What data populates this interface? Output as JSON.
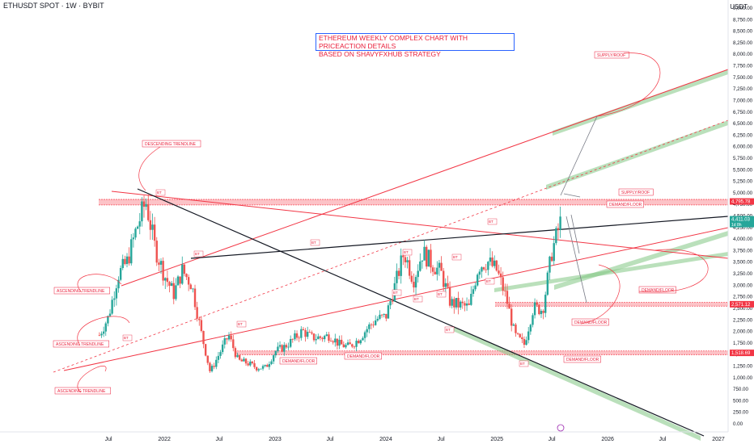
{
  "header": {
    "symbol": "ETHUSDT SPOT · 1W · BYBIT",
    "currency": "USDT"
  },
  "title_box": {
    "line1": "ETHEREUM WEEKLY COMPLEX CHART WITH PRICEACTION DETAILS",
    "line2": "BASED ON SHAVYFXHUB STRATEGY"
  },
  "colors": {
    "up": "#26a69a",
    "down": "#ef5350",
    "trend_red": "#f23645",
    "trend_black": "#131722",
    "channel_green": "#81c784",
    "zone_red": "#f7525f",
    "label_red": "#e91e3a"
  },
  "chart_data": {
    "type": "candlestick",
    "timeframe": "1W",
    "y_axis": {
      "ticks": [
        0,
        250,
        500,
        750,
        1000,
        1250,
        1500,
        1750,
        2000,
        2250,
        2500,
        2750,
        3000,
        3250,
        3500,
        3750,
        4000,
        4250,
        4500,
        4750,
        5000,
        5250,
        5500,
        5750,
        6000,
        6250,
        6500,
        6750,
        7000,
        7250,
        7500,
        7750,
        8000,
        8250,
        8500,
        8750,
        9000
      ],
      "tick_labels": [
        "0.00",
        "250.00",
        "500.00",
        "750.00",
        "1,000.00",
        "1,250.00",
        "1,500.00",
        "1,750.00",
        "2,000.00",
        "2,250.00",
        "2,500.00",
        "2,750.00",
        "3,000.00",
        "3,250.00",
        "3,500.00",
        "3,750.00",
        "4,000.00",
        "4,250.00",
        "4,500.00",
        "4,750.00",
        "5,000.00",
        "5,250.00",
        "5,500.00",
        "5,750.00",
        "6,000.00",
        "6,250.00",
        "6,500.00",
        "6,750.00",
        "7,000.00",
        "7,250.00",
        "7,500.00",
        "7,750.00",
        "8,000.00",
        "8,250.00",
        "8,500.00",
        "8,750.00",
        "9,000.00"
      ],
      "range": [
        0,
        9000
      ]
    },
    "x_axis": {
      "labels": [
        "Jul",
        "2022",
        "Jul",
        "2023",
        "Jul",
        "2024",
        "Jul",
        "2025",
        "Jul",
        "2026",
        "Jul",
        "2027"
      ],
      "range": [
        "2021-04",
        "2027-01"
      ]
    },
    "price_tags": [
      {
        "value": 4795.78,
        "label": "4,795.78",
        "color": "#f23645"
      },
      {
        "value": 4411.03,
        "label": "4,411.03",
        "sub": "1d 8h",
        "color": "#26a69a"
      },
      {
        "value": 2571.12,
        "label": "2,571.12",
        "color": "#f23645"
      },
      {
        "value": 1518.69,
        "label": "1,518.69",
        "color": "#f23645"
      }
    ],
    "price_path": [
      [
        "2021-06",
        1900
      ],
      [
        "2021-07",
        2300
      ],
      [
        "2021-08",
        3200
      ],
      [
        "2021-09",
        3500
      ],
      [
        "2021-10",
        4200
      ],
      [
        "2021-11",
        4800
      ],
      [
        "2021-12",
        3800
      ],
      [
        "2022-01",
        3200
      ],
      [
        "2022-02",
        2800
      ],
      [
        "2022-03",
        3300
      ],
      [
        "2022-04",
        3000
      ],
      [
        "2022-05",
        2000
      ],
      [
        "2022-06",
        1100
      ],
      [
        "2022-07",
        1500
      ],
      [
        "2022-08",
        1900
      ],
      [
        "2022-09",
        1350
      ],
      [
        "2022-10",
        1300
      ],
      [
        "2022-11",
        1200
      ],
      [
        "2022-12",
        1200
      ],
      [
        "2023-01",
        1550
      ],
      [
        "2023-02",
        1650
      ],
      [
        "2023-03",
        1800
      ],
      [
        "2023-04",
        2000
      ],
      [
        "2023-05",
        1850
      ],
      [
        "2023-06",
        1850
      ],
      [
        "2023-07",
        1900
      ],
      [
        "2023-08",
        1700
      ],
      [
        "2023-09",
        1650
      ],
      [
        "2023-10",
        1800
      ],
      [
        "2023-11",
        2050
      ],
      [
        "2023-12",
        2250
      ],
      [
        "2024-01",
        2300
      ],
      [
        "2024-02",
        3000
      ],
      [
        "2024-03",
        3700
      ],
      [
        "2024-04",
        3100
      ],
      [
        "2024-05",
        3700
      ],
      [
        "2024-06",
        3450
      ],
      [
        "2024-07",
        3250
      ],
      [
        "2024-08",
        2600
      ],
      [
        "2024-09",
        2550
      ],
      [
        "2024-10",
        2500
      ],
      [
        "2024-11",
        3400
      ],
      [
        "2024-12",
        3500
      ],
      [
        "2025-01",
        3300
      ],
      [
        "2025-02",
        2700
      ],
      [
        "2025-03",
        1900
      ],
      [
        "2025-04",
        1700
      ],
      [
        "2025-05",
        2500
      ],
      [
        "2025-06",
        2450
      ],
      [
        "2025-07",
        3700
      ],
      [
        "2025-08",
        4400
      ]
    ],
    "zones": [
      {
        "name": "SUPPLY/ROOF",
        "from": 4720,
        "to": 4840
      },
      {
        "name": "DEMAND FLOOR",
        "from": 2530,
        "to": 2610
      },
      {
        "name": "DEMAND FLOOR",
        "from": 1480,
        "to": 1560
      }
    ],
    "annotations": [
      "SUPPLY/ROOF",
      "SUPPLY/ROOF",
      "DEMAND/FLOOR",
      "DEMAND/FLOOR",
      "DEMAND/FLOOR",
      "DEMAND/FLOOR",
      "DEMAND/FLOOR",
      "DEMAND/FLOOR",
      "DESCENDING TRENDLINE",
      "ASCENDING TRENDLINE",
      "ASCENDING TRENDLINE",
      "ASCENDING TRENDLINE"
    ],
    "small_labels": [
      "BT",
      "BT",
      "BT",
      "BT",
      "BT",
      "BT",
      "BT",
      "BT",
      "BT",
      "BT",
      "BT",
      "BT",
      "BT",
      "BT"
    ]
  }
}
